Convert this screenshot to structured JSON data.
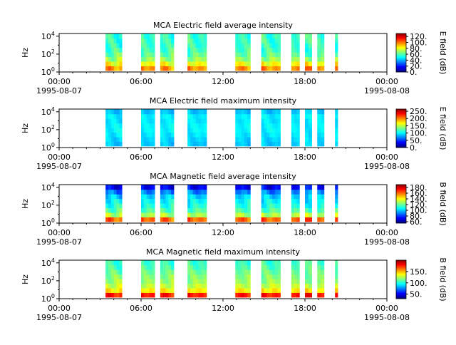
{
  "x_axis": {
    "ticks": [
      {
        "time": "00:00",
        "date": "1995-08-07"
      },
      {
        "time": "06:00",
        "date": ""
      },
      {
        "time": "12:00",
        "date": ""
      },
      {
        "time": "18:00",
        "date": ""
      },
      {
        "time": "00:00",
        "date": "1995-08-08"
      }
    ]
  },
  "chart_data": [
    {
      "type": "heatmap",
      "title": "MCA  Electric field average intensity",
      "ylabel": "Hz",
      "yscale": "log",
      "ylim": [
        1,
        20000
      ],
      "y_ticks": [
        "10^0",
        "10^2",
        "10^4"
      ],
      "xlim_hours": [
        0,
        24
      ],
      "colorbar": {
        "label": "E field (dB)",
        "ticks": [
          "0.",
          "20.",
          "40.",
          "60.",
          "80.",
          "100.",
          "120."
        ],
        "range": [
          0,
          130
        ]
      },
      "data_intervals_hours": [
        [
          3.4,
          4.6
        ],
        [
          6.0,
          7.0
        ],
        [
          7.4,
          8.4
        ],
        [
          9.4,
          10.8
        ],
        [
          12.9,
          14.0
        ],
        [
          14.8,
          16.2
        ],
        [
          17.0,
          17.6
        ],
        [
          18.0,
          18.5
        ],
        [
          18.9,
          19.4
        ],
        [
          20.2,
          20.4
        ]
      ],
      "profile_db_low_to_high": [
        95,
        82,
        70,
        62,
        56,
        54,
        55,
        56
      ]
    },
    {
      "type": "heatmap",
      "title": "MCA  Electric field maximum intensity",
      "ylabel": "Hz",
      "yscale": "log",
      "ylim": [
        1,
        20000
      ],
      "y_ticks": [
        "10^0",
        "10^2",
        "10^4"
      ],
      "xlim_hours": [
        0,
        24
      ],
      "colorbar": {
        "label": "E field (dB)",
        "ticks": [
          "0.",
          "50.",
          "100.",
          "150.",
          "200.",
          "250."
        ],
        "range": [
          0,
          265
        ]
      },
      "data_intervals_hours": [
        [
          3.4,
          4.6
        ],
        [
          6.0,
          7.0
        ],
        [
          7.4,
          8.4
        ],
        [
          9.4,
          10.8
        ],
        [
          12.9,
          14.0
        ],
        [
          14.8,
          16.2
        ],
        [
          17.0,
          17.6
        ],
        [
          18.0,
          18.5
        ],
        [
          18.9,
          19.4
        ],
        [
          20.2,
          20.4
        ]
      ],
      "profile_db_low_to_high": [
        85,
        90,
        95,
        98,
        96,
        92,
        95,
        85
      ]
    },
    {
      "type": "heatmap",
      "title": "MCA  Magnetic field average intensity",
      "ylabel": "Hz",
      "yscale": "log",
      "ylim": [
        1,
        20000
      ],
      "y_ticks": [
        "10^0",
        "10^2",
        "10^4"
      ],
      "xlim_hours": [
        0,
        24
      ],
      "colorbar": {
        "label": "B field (dB)",
        "ticks": [
          "60.",
          "80.",
          "100.",
          "120.",
          "140.",
          "160.",
          "180."
        ],
        "range": [
          55,
          190
        ]
      },
      "data_intervals_hours": [
        [
          3.4,
          4.6
        ],
        [
          6.0,
          7.0
        ],
        [
          7.4,
          8.4
        ],
        [
          9.4,
          10.8
        ],
        [
          12.9,
          14.0
        ],
        [
          14.8,
          16.2
        ],
        [
          17.0,
          17.6
        ],
        [
          18.0,
          18.5
        ],
        [
          18.9,
          19.4
        ],
        [
          20.2,
          20.4
        ]
      ],
      "profile_db_low_to_high": [
        160,
        130,
        118,
        110,
        104,
        98,
        88,
        72
      ]
    },
    {
      "type": "heatmap",
      "title": "MCA  Magnetic field maximum intensity",
      "ylabel": "Hz",
      "yscale": "log",
      "ylim": [
        1,
        20000
      ],
      "y_ticks": [
        "10^0",
        "10^2",
        "10^4"
      ],
      "xlim_hours": [
        0,
        24
      ],
      "colorbar": {
        "label": "B field (dB)",
        "ticks": [
          "50.",
          "100.",
          "150."
        ],
        "range": [
          30,
          200
        ]
      },
      "data_intervals_hours": [
        [
          3.4,
          4.6
        ],
        [
          6.0,
          7.0
        ],
        [
          7.4,
          8.4
        ],
        [
          9.4,
          10.8
        ],
        [
          12.9,
          14.0
        ],
        [
          14.8,
          16.2
        ],
        [
          17.0,
          17.6
        ],
        [
          18.0,
          18.5
        ],
        [
          18.9,
          19.4
        ],
        [
          20.2,
          20.4
        ]
      ],
      "profile_db_low_to_high": [
        175,
        140,
        128,
        120,
        115,
        110,
        106,
        104
      ]
    }
  ]
}
